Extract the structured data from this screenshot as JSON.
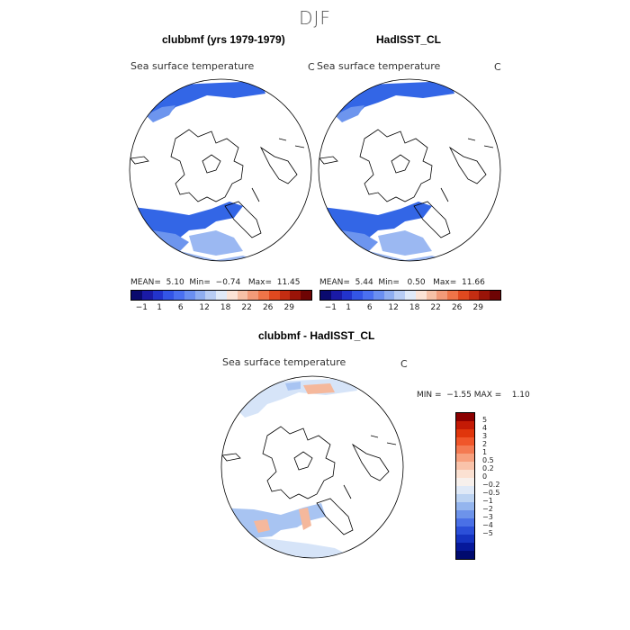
{
  "season": "DJF",
  "panels": [
    {
      "title": "clubbmf (yrs 1979-1979)",
      "subtitle": "Sea surface temperature",
      "unit": "C",
      "stats": {
        "mean_label": "MEAN=",
        "mean": "5.10",
        "min_label": "Min=",
        "min": "−0.74",
        "max_label": "Max=",
        "max": "11.45"
      }
    },
    {
      "title": "HadISST_CL",
      "subtitle": "Sea surface temperature",
      "unit": "C",
      "stats": {
        "mean_label": "MEAN=",
        "mean": "5.44",
        "min_label": "Min=",
        "min": "0.50",
        "max_label": "Max=",
        "max": "11.66"
      }
    }
  ],
  "diff": {
    "title": "clubbmf - HadISST_CL",
    "subtitle": "Sea surface temperature",
    "unit": "C",
    "stats": {
      "min_label": "MIN =",
      "min": "−1.55",
      "max_label": "MAX =",
      "max": "1.10"
    }
  },
  "colorbar_main": {
    "colors": [
      "#0a0a6e",
      "#1a1aa6",
      "#2233cc",
      "#3355e6",
      "#4a70f0",
      "#6a8ff0",
      "#8faef0",
      "#b8cdf4",
      "#e0eaf8",
      "#fbe3d6",
      "#f6c0a6",
      "#f29a78",
      "#ee7448",
      "#e0491f",
      "#c42d12",
      "#9a1408",
      "#6e0404"
    ],
    "tick_labels": [
      "−1",
      "1",
      "6",
      "12",
      "18",
      "22",
      "26",
      "29"
    ]
  },
  "colorbar_diff": {
    "colors": [
      "#8b0000",
      "#c41a05",
      "#e0360c",
      "#f0562a",
      "#f47a52",
      "#f7a07e",
      "#f9c3aa",
      "#fbe1d2",
      "#f7f0ec",
      "#dfe9f7",
      "#bcd3f2",
      "#94b5ee",
      "#6d93ea",
      "#4a70e6",
      "#2b4fd8",
      "#1533c0",
      "#06189a",
      "#000a6e"
    ],
    "labels": [
      "5",
      "4",
      "3",
      "2",
      "1",
      "0.5",
      "0.2",
      "0",
      "−0.2",
      "−0.5",
      "−1",
      "−2",
      "−3",
      "−4",
      "−5"
    ]
  },
  "map_colors": {
    "deep": "#3366e6",
    "mid": "#4d7eea",
    "light": "#6d95ee",
    "pale": "#9bb8f2",
    "diff_pale": "#d6e4f8",
    "diff_blue": "#a8c4f2",
    "diff_warm": "#f5b89c"
  }
}
